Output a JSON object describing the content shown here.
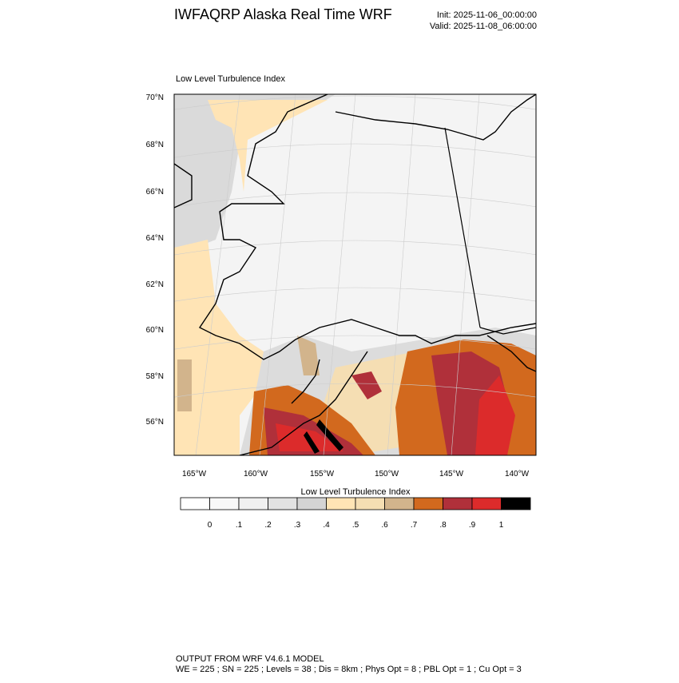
{
  "header": {
    "title": "IWFAQRP Alaska Real Time WRF",
    "init": "Init: 2025-11-06_00:00:00",
    "valid": "Valid: 2025-11-08_06:00:00"
  },
  "map": {
    "title": "Low Level Turbulence Index",
    "lat_labels": [
      "70°N",
      "68°N",
      "66°N",
      "64°N",
      "62°N",
      "60°N",
      "58°N",
      "56°N"
    ],
    "lon_labels": [
      "165°W",
      "160°W",
      "155°W",
      "150°W",
      "145°W",
      "140°W"
    ]
  },
  "colorbar": {
    "title": "Low Level Turbulence Index",
    "colors": [
      "#ffffff",
      "#f8f8f8",
      "#f0f0f0",
      "#e2e2e2",
      "#d4d4d4",
      "#ffe4b5",
      "#f5deb3",
      "#d2b48c",
      "#d2691e",
      "#b0303a",
      "#dc2b2b",
      "#000000"
    ],
    "labels": [
      "0",
      ".1",
      ".2",
      ".3",
      ".4",
      ".5",
      ".6",
      ".7",
      ".8",
      ".9",
      "1"
    ]
  },
  "footer": {
    "line1": "OUTPUT FROM WRF V4.6.1 MODEL",
    "line2": "WE = 225 ; SN = 225 ; Levels = 38 ; Dis = 8km ; Phys Opt = 8 ; PBL Opt = 1 ; Cu Opt = 3"
  }
}
